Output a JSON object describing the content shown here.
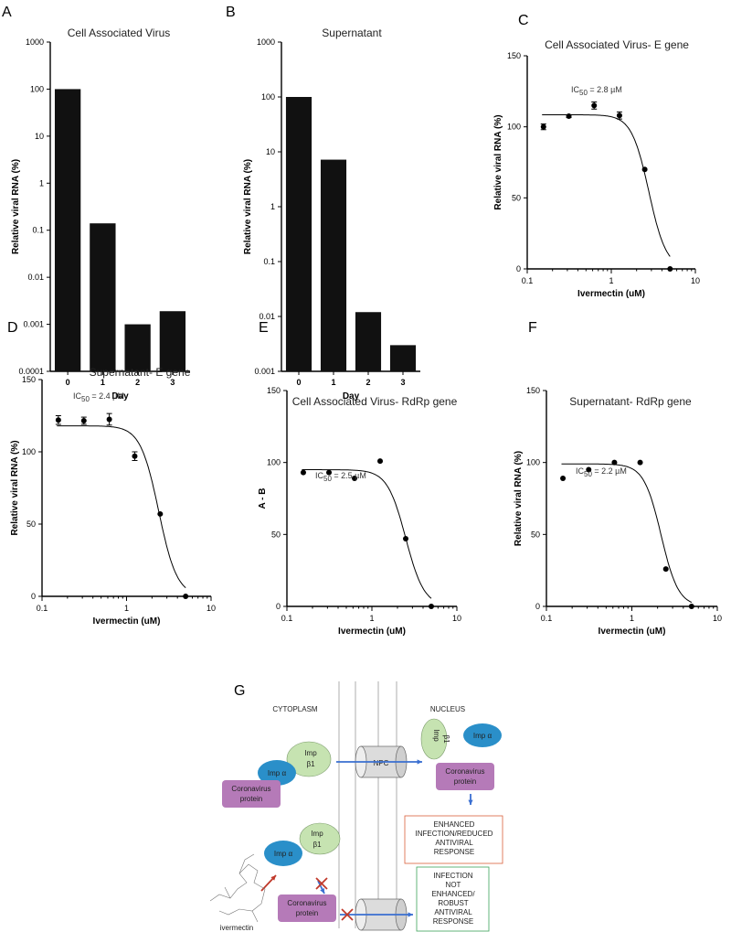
{
  "chart_data": [
    {
      "panel": "A",
      "type": "bar",
      "scale": "log",
      "title": "Cell Associated Virus",
      "xlabel": "Day",
      "ylabel": "Relative viral RNA (%)",
      "categories": [
        "0",
        "1",
        "2",
        "3"
      ],
      "values": [
        100,
        0.14,
        0.001,
        0.0019
      ],
      "ylim": [
        0.0001,
        1000
      ],
      "yticks": [
        "0.0001",
        "0.001",
        "0.01",
        "0.1",
        "1",
        "10",
        "100",
        "1000"
      ]
    },
    {
      "panel": "B",
      "type": "bar",
      "scale": "log",
      "title": "Supernatant",
      "xlabel": "Day",
      "ylabel": "Relative viral RNA (%)",
      "categories": [
        "0",
        "1",
        "2",
        "3"
      ],
      "values": [
        100,
        7.2,
        0.012,
        0.003
      ],
      "ylim": [
        0.001,
        1000
      ],
      "yticks": [
        "0.001",
        "0.01",
        "0.1",
        "1",
        "10",
        "100",
        "1000"
      ]
    },
    {
      "panel": "C",
      "type": "scatter",
      "title": "Cell Associated Virus- E gene",
      "annotation": "2.8 µM",
      "xlabel": "Ivermectin (uM)",
      "ylabel": "Relative viral RNA (%)",
      "x": [
        0.156,
        0.3125,
        0.625,
        1.25,
        2.5,
        5.0
      ],
      "y": [
        100,
        107.5,
        115,
        108,
        70,
        0
      ],
      "err": [
        2,
        1,
        2.5,
        2.5,
        0,
        0
      ],
      "fit": {
        "top": 108.5,
        "ic50": 2.8,
        "hill": 4.2
      },
      "ylim": [
        0,
        150
      ],
      "xlim": [
        0.1,
        10
      ],
      "yticks": [
        "0",
        "50",
        "100",
        "150"
      ],
      "xticks": [
        "0.1",
        "1",
        "10"
      ]
    },
    {
      "panel": "D",
      "type": "scatter",
      "title": "Supernatant- E gene",
      "annotation": "2.4 µM",
      "xlabel": "Ivermectin (uM)",
      "ylabel": "Relative viral RNA (%)",
      "x": [
        0.156,
        0.3125,
        0.625,
        1.25,
        2.5,
        5.0
      ],
      "y": [
        122,
        121.5,
        122.5,
        97,
        57,
        0
      ],
      "err": [
        3,
        2.5,
        4,
        3,
        0,
        0
      ],
      "fit": {
        "top": 118,
        "ic50": 2.4,
        "hill": 4.0
      },
      "ylim": [
        0,
        150
      ],
      "xlim": [
        0.1,
        10
      ],
      "yticks": [
        "0",
        "50",
        "100",
        "150"
      ],
      "xticks": [
        "0.1",
        "1",
        "10"
      ]
    },
    {
      "panel": "E",
      "type": "scatter",
      "title": "Cell Associated Virus- RdRp gene",
      "annotation": "2.5 µM",
      "xlabel": "Ivermectin (uM)",
      "ylabel": "A - B",
      "x": [
        0.156,
        0.3125,
        0.625,
        1.25,
        2.5,
        5.0
      ],
      "y": [
        93,
        93,
        89,
        101,
        47,
        0
      ],
      "err": [
        0,
        0,
        0,
        0,
        0,
        0
      ],
      "fit": {
        "top": 95,
        "ic50": 2.5,
        "hill": 4.0
      },
      "ylim": [
        0,
        150
      ],
      "xlim": [
        0.1,
        10
      ],
      "yticks": [
        "0",
        "50",
        "100",
        "150"
      ],
      "xticks": [
        "0.1",
        "1",
        "10"
      ]
    },
    {
      "panel": "F",
      "type": "scatter",
      "title": "Supernatant- RdRp gene",
      "annotation": "2.2 µM",
      "xlabel": "Ivermectin (uM)",
      "ylabel": "Relative viral RNA (%)",
      "x": [
        0.156,
        0.3125,
        0.625,
        1.25,
        2.5,
        5.0
      ],
      "y": [
        89,
        95,
        100,
        100,
        26,
        0
      ],
      "err": [
        0,
        0,
        0,
        0,
        0,
        0
      ],
      "fit": {
        "top": 99,
        "ic50": 2.2,
        "hill": 4.3
      },
      "ylim": [
        0,
        150
      ],
      "xlim": [
        0.1,
        10
      ],
      "yticks": [
        "0",
        "50",
        "100",
        "150"
      ],
      "xticks": [
        "0.1",
        "1",
        "10"
      ]
    }
  ],
  "ic50_prefix": "IC",
  "ic50_sub": "50",
  "ic50_eq": " = ",
  "diagram": {
    "panel": "G",
    "cytoplasm": "CYTOPLASM",
    "nucleus": "NUCLEUS",
    "npc": "NPC",
    "imp_alpha": "Imp α",
    "imp_beta_1": "Imp",
    "imp_beta_2": "β1",
    "coronavirus_1": "Coronavirus",
    "coronavirus_2": "protein",
    "ivermectin": "ivermectin",
    "enhanced": [
      "ENHANCED",
      "INFECTION/REDUCED",
      "ANTIVIRAL",
      "RESPONSE"
    ],
    "not_enhanced": [
      "INFECTION",
      "NOT",
      "ENHANCED/",
      "ROBUST",
      "ANTIVIRAL",
      "RESPONSE"
    ],
    "colors": {
      "imp_alpha": "#2a8fc9",
      "imp_beta": "#c6e3b1",
      "protein": "#b57ab8",
      "arrow_blue": "#3a6fd1",
      "arrow_red": "#c0392b",
      "box_red": "#d9603b",
      "box_green": "#3da35a"
    }
  }
}
